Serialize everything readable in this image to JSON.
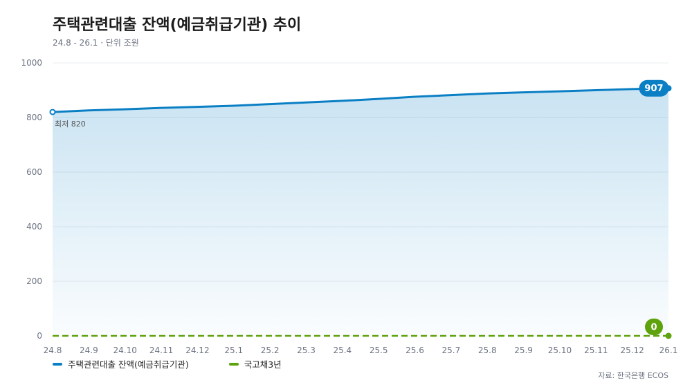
{
  "chart_data": {
    "type": "line",
    "title": "주택관련대출 잔액(예금취급기관) 추이",
    "subtitle": "24.8 - 26.1 · 단위 조원",
    "categories": [
      "24.8",
      "24.9",
      "24.10",
      "24.11",
      "24.12",
      "25.1",
      "25.2",
      "25.3",
      "25.4",
      "25.5",
      "25.6",
      "25.7",
      "25.8",
      "25.9",
      "25.10",
      "25.11",
      "25.12",
      "26.1"
    ],
    "ylim": [
      0,
      1000
    ],
    "yticks": [
      0,
      200,
      400,
      600,
      800,
      1000
    ],
    "grid": true,
    "legend_position": "bottom-left",
    "series": [
      {
        "name": "주택관련대출 잔액(예금취급기관)",
        "color": "#0a7fc4",
        "style": "solid-area",
        "values": [
          820,
          826,
          830,
          835,
          839,
          843,
          849,
          855,
          861,
          868,
          876,
          882,
          888,
          892,
          896,
          900,
          904,
          907
        ]
      },
      {
        "name": "국고채3년",
        "color": "#5ea20d",
        "style": "dashed",
        "values": [
          0,
          0,
          0,
          0,
          0,
          0,
          0,
          0,
          0,
          0,
          0,
          0,
          0,
          0,
          0,
          0,
          0,
          0
        ]
      }
    ],
    "annotations": [
      {
        "series": 0,
        "index": 0,
        "text": "최저 820",
        "kind": "min-label"
      },
      {
        "series": 0,
        "index": 17,
        "text": "907",
        "kind": "end-badge"
      },
      {
        "series": 1,
        "index": 17,
        "text": "0",
        "kind": "end-badge"
      }
    ],
    "source": "자료: 한국은행 ECOS"
  }
}
